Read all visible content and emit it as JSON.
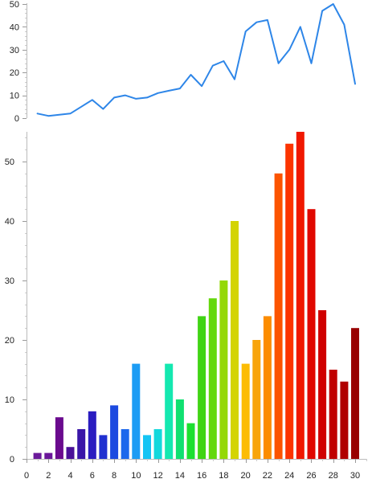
{
  "chart_data": [
    {
      "type": "line",
      "title": "",
      "xlabel": "",
      "ylabel": "",
      "ylim": [
        0,
        50
      ],
      "yticks": [
        0,
        10,
        20,
        30,
        40,
        50
      ],
      "grid": false,
      "color": "#2e86e8",
      "x": [
        1,
        2,
        3,
        4,
        5,
        6,
        7,
        8,
        9,
        10,
        11,
        12,
        13,
        14,
        15,
        16,
        17,
        18,
        19,
        20,
        21,
        22,
        23,
        24,
        25,
        26,
        27,
        28,
        29,
        30
      ],
      "values": [
        2,
        1,
        1.5,
        2,
        5,
        8,
        4,
        9,
        10,
        8.5,
        9,
        11,
        12,
        13,
        19,
        14,
        23,
        25,
        17,
        38,
        42,
        43,
        24,
        30,
        40,
        24,
        47,
        50,
        41,
        15
      ]
    },
    {
      "type": "bar",
      "title": "",
      "xlabel": "",
      "ylabel": "",
      "ylim": [
        0,
        55
      ],
      "xlim": [
        0,
        31
      ],
      "yticks": [
        0,
        10,
        20,
        30,
        40,
        50
      ],
      "xticks": [
        0,
        2,
        4,
        6,
        8,
        10,
        12,
        14,
        16,
        18,
        20,
        22,
        24,
        26,
        28,
        30
      ],
      "grid": false,
      "x": [
        1,
        2,
        3,
        4,
        5,
        6,
        7,
        8,
        9,
        10,
        11,
        12,
        13,
        14,
        15,
        16,
        17,
        18,
        19,
        20,
        21,
        22,
        23,
        24,
        25,
        26,
        27,
        28,
        29,
        30
      ],
      "values": [
        1,
        1,
        7,
        2,
        5,
        8,
        4,
        9,
        5,
        16,
        4,
        5,
        16,
        10,
        6,
        24,
        27,
        30,
        40,
        16,
        20,
        24,
        48,
        53,
        55,
        42,
        25,
        15,
        13,
        22
      ],
      "colors": [
        "#6b1a9a",
        "#6a1699",
        "#6a0a8e",
        "#4a1098",
        "#3a16a8",
        "#2a1cc0",
        "#2030d0",
        "#1c4ae0",
        "#1c68ec",
        "#1c9cf4",
        "#14c4f4",
        "#14d8dc",
        "#14e8b0",
        "#10e070",
        "#1ce030",
        "#40d414",
        "#64d80c",
        "#94d808",
        "#d4d404",
        "#fcbc04",
        "#f8a40c",
        "#fc8c00",
        "#fc5400",
        "#fc3400",
        "#f01800",
        "#e00800",
        "#d00000",
        "#c00000",
        "#b00000",
        "#980000"
      ]
    }
  ]
}
